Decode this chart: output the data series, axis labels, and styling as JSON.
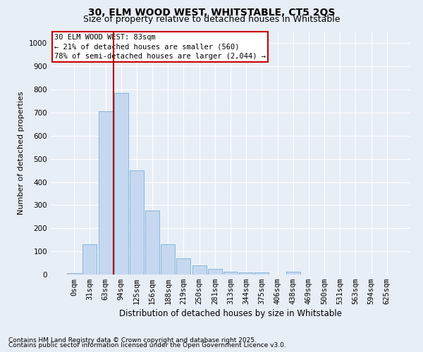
{
  "title_line1": "30, ELM WOOD WEST, WHITSTABLE, CT5 2QS",
  "title_line2": "Size of property relative to detached houses in Whitstable",
  "xlabel": "Distribution of detached houses by size in Whitstable",
  "ylabel": "Number of detached properties",
  "bar_labels": [
    "0sqm",
    "31sqm",
    "63sqm",
    "94sqm",
    "125sqm",
    "156sqm",
    "188sqm",
    "219sqm",
    "250sqm",
    "281sqm",
    "313sqm",
    "344sqm",
    "375sqm",
    "406sqm",
    "438sqm",
    "469sqm",
    "500sqm",
    "531sqm",
    "563sqm",
    "594sqm",
    "625sqm"
  ],
  "bar_values": [
    5,
    130,
    705,
    785,
    450,
    278,
    130,
    70,
    40,
    25,
    12,
    10,
    10,
    0,
    12,
    0,
    0,
    0,
    0,
    0,
    0
  ],
  "bar_color": "#c5d8f0",
  "bar_edge_color": "#7bafd4",
  "vline_color": "#aa0000",
  "vline_x": 2.5,
  "ylim": [
    0,
    1050
  ],
  "yticks": [
    0,
    100,
    200,
    300,
    400,
    500,
    600,
    700,
    800,
    900,
    1000
  ],
  "annotation_text": "30 ELM WOOD WEST: 83sqm\n← 21% of detached houses are smaller (560)\n78% of semi-detached houses are larger (2,044) →",
  "annotation_box_facecolor": "#ffffff",
  "annotation_box_edgecolor": "#cc0000",
  "footer_line1": "Contains HM Land Registry data © Crown copyright and database right 2025.",
  "footer_line2": "Contains public sector information licensed under the Open Government Licence v3.0.",
  "bg_color": "#e8eef6",
  "grid_color": "#ffffff",
  "title_fontsize": 10,
  "subtitle_fontsize": 9,
  "axis_fontsize": 7.5,
  "ylabel_fontsize": 8,
  "xlabel_fontsize": 8.5,
  "footer_fontsize": 6.5,
  "ann_fontsize": 7.5
}
